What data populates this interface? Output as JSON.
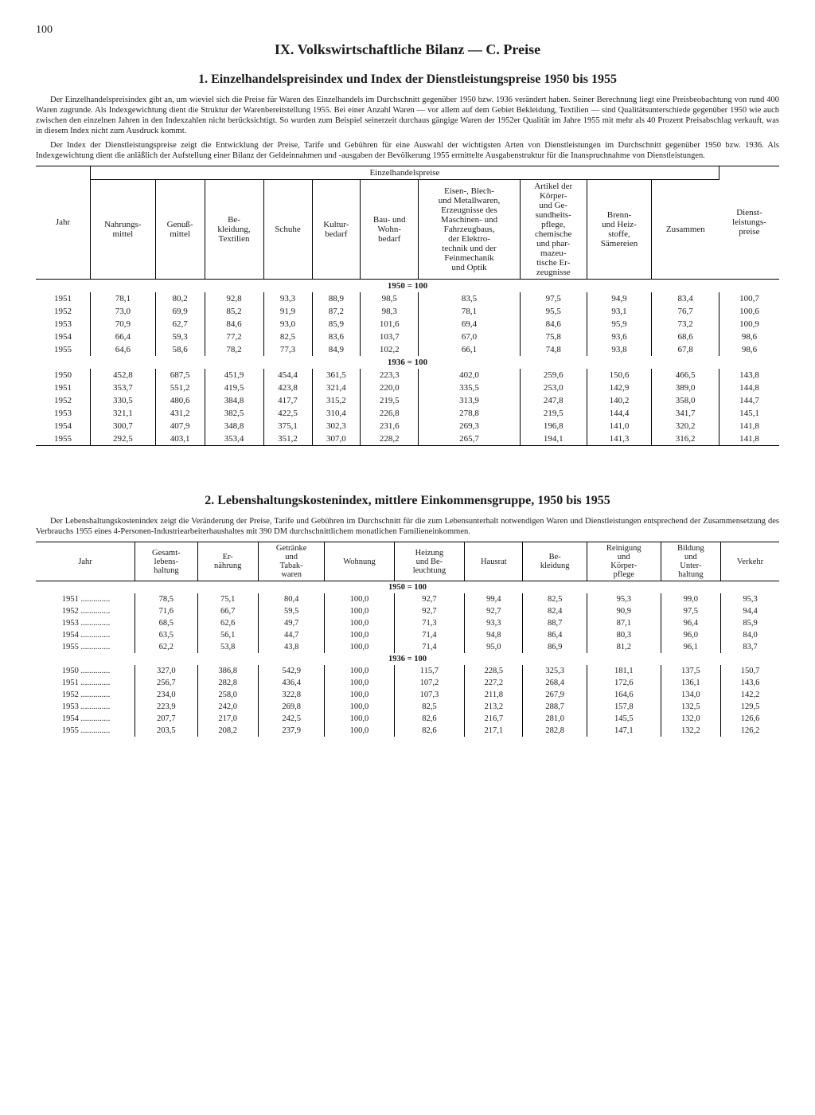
{
  "page_number": "100",
  "section_title": "IX. Volkswirtschaftliche Bilanz — C. Preise",
  "sub1_title": "1. Einzelhandelspreisindex und Index der Dienstleistungspreise 1950 bis 1955",
  "intro1a": "Der Einzelhandelspreisindex gibt an, um wieviel sich die Preise für Waren des Einzelhandels im Durchschnitt gegenüber 1950 bzw. 1936 verändert haben. Seiner Berechnung liegt eine Preisbeobachtung von rund 400 Waren zugrunde. Als Indexgewichtung dient die Struktur der Warenbereitstellung 1955. Bei einer Anzahl Waren — vor allem auf dem Gebiet Bekleidung, Textilien — sind Qualitätsunterschiede gegenüber 1950 wie auch zwischen den einzelnen Jahren in den Indexzahlen nicht berücksichtigt. So wurden zum Beispiel seinerzeit durchaus gängige Waren der 1952er Qualität im Jahre 1955 mit mehr als 40 Prozent Preisabschlag verkauft, was in diesem Index nicht zum Ausdruck kommt.",
  "intro1b": "Der Index der Dienstleistungspreise zeigt die Entwicklung der Preise, Tarife und Gebühren für eine Auswahl der wichtigsten Arten von Dienstleistungen im Durchschnitt gegenüber 1950 bzw. 1936. Als Indexgewichtung dient die anläßlich der Aufstellung einer Bilanz der Geldeinnahmen und -ausgaben der Bevölkerung 1955 ermittelte Ausgabenstruktur für die Inanspruchnahme von Dienstleistungen.",
  "t1": {
    "group_header": "Einzelhandelspreise",
    "cols": [
      "Jahr",
      "Nahrungs-\nmittel",
      "Genuß-\nmittel",
      "Be-\nkleidung,\nTextilien",
      "Schuhe",
      "Kultur-\nbedarf",
      "Bau- und\nWohn-\nbedarf",
      "Eisen-, Blech-\nund Metallwaren,\nErzeugnisse des\nMaschinen- und\nFahrzeugbaus,\nder Elektro-\ntechnik und der\nFeinmechanik\nund Optik",
      "Artikel der\nKörper-\nund Ge-\nsundheits-\npflege,\nchemische\nund phar-\nmazeu-\ntische Er-\nzeugnisse",
      "Brenn-\nund Heiz-\nstoffe,\nSämereien",
      "Zusammen",
      "Dienst-\nleistungs-\npreise"
    ],
    "sep1": "1950 = 100",
    "rows1": [
      [
        "1951",
        "78,1",
        "80,2",
        "92,8",
        "93,3",
        "88,9",
        "98,5",
        "83,5",
        "97,5",
        "94,9",
        "83,4",
        "100,7"
      ],
      [
        "1952",
        "73,0",
        "69,9",
        "85,2",
        "91,9",
        "87,2",
        "98,3",
        "78,1",
        "95,5",
        "93,1",
        "76,7",
        "100,6"
      ],
      [
        "1953",
        "70,9",
        "62,7",
        "84,6",
        "93,0",
        "85,9",
        "101,6",
        "69,4",
        "84,6",
        "95,9",
        "73,2",
        "100,9"
      ],
      [
        "1954",
        "66,4",
        "59,3",
        "77,2",
        "82,5",
        "83,6",
        "103,7",
        "67,0",
        "75,8",
        "93,6",
        "68,6",
        "98,6"
      ],
      [
        "1955",
        "64,6",
        "58,6",
        "78,2",
        "77,3",
        "84,9",
        "102,2",
        "66,1",
        "74,8",
        "93,8",
        "67,8",
        "98,6"
      ]
    ],
    "sep2": "1936 = 100",
    "rows2": [
      [
        "1950",
        "452,8",
        "687,5",
        "451,9",
        "454,4",
        "361,5",
        "223,3",
        "402,0",
        "259,6",
        "150,6",
        "466,5",
        "143,8"
      ],
      [
        "1951",
        "353,7",
        "551,2",
        "419,5",
        "423,8",
        "321,4",
        "220,0",
        "335,5",
        "253,0",
        "142,9",
        "389,0",
        "144,8"
      ],
      [
        "1952",
        "330,5",
        "480,6",
        "384,8",
        "417,7",
        "315,2",
        "219,5",
        "313,9",
        "247,8",
        "140,2",
        "358,0",
        "144,7"
      ],
      [
        "1953",
        "321,1",
        "431,2",
        "382,5",
        "422,5",
        "310,4",
        "226,8",
        "278,8",
        "219,5",
        "144,4",
        "341,7",
        "145,1"
      ],
      [
        "1954",
        "300,7",
        "407,9",
        "348,8",
        "375,1",
        "302,3",
        "231,6",
        "269,3",
        "196,8",
        "141,0",
        "320,2",
        "141,8"
      ],
      [
        "1955",
        "292,5",
        "403,1",
        "353,4",
        "351,2",
        "307,0",
        "228,2",
        "265,7",
        "194,1",
        "141,3",
        "316,2",
        "141,8"
      ]
    ]
  },
  "sub2_title": "2. Lebenshaltungskostenindex, mittlere Einkommensgruppe, 1950 bis 1955",
  "intro2": "Der Lebenshaltungskostenindex zeigt die Veränderung der Preise, Tarife und Gebühren im Durchschnitt für die zum Lebensunterhalt notwendigen Waren und Dienstleistungen entsprechend der Zusammensetzung des Verbrauchs 1955 eines 4-Personen-Industriearbeiterhaushaltes mit 390 DM durchschnittlichem monatlichen Familieneinkommen.",
  "t2": {
    "cols": [
      "Jahr",
      "Gesamt-\nlebens-\nhaltung",
      "Er-\nnährung",
      "Getränke\nund\nTabak-\nwaren",
      "Wohnung",
      "Heizung\nund Be-\nleuchtung",
      "Hausrat",
      "Be-\nkleidung",
      "Reinigung\nund\nKörper-\npflege",
      "Bildung\nund\nUnter-\nhaltung",
      "Verkehr"
    ],
    "sep1": "1950 = 100",
    "rows1": [
      [
        "1951",
        "78,5",
        "75,1",
        "80,4",
        "100,0",
        "92,7",
        "99,4",
        "82,5",
        "95,3",
        "99,0",
        "95,3"
      ],
      [
        "1952",
        "71,6",
        "66,7",
        "59,5",
        "100,0",
        "92,7",
        "92,7",
        "82,4",
        "90,9",
        "97,5",
        "94,4"
      ],
      [
        "1953",
        "68,5",
        "62,6",
        "49,7",
        "100,0",
        "71,3",
        "93,3",
        "88,7",
        "87,1",
        "96,4",
        "85,9"
      ],
      [
        "1954",
        "63,5",
        "56,1",
        "44,7",
        "100,0",
        "71,4",
        "94,8",
        "86,4",
        "80,3",
        "96,0",
        "84,0"
      ],
      [
        "1955",
        "62,2",
        "53,8",
        "43,8",
        "100,0",
        "71,4",
        "95,0",
        "86,9",
        "81,2",
        "96,1",
        "83,7"
      ]
    ],
    "sep2": "1936 = 100",
    "rows2": [
      [
        "1950",
        "327,0",
        "386,8",
        "542,9",
        "100,0",
        "115,7",
        "228,5",
        "325,3",
        "181,1",
        "137,5",
        "150,7"
      ],
      [
        "1951",
        "256,7",
        "282,8",
        "436,4",
        "100,0",
        "107,2",
        "227,2",
        "268,4",
        "172,6",
        "136,1",
        "143,6"
      ],
      [
        "1952",
        "234,0",
        "258,0",
        "322,8",
        "100,0",
        "107,3",
        "211,8",
        "267,9",
        "164,6",
        "134,0",
        "142,2"
      ],
      [
        "1953",
        "223,9",
        "242,0",
        "269,8",
        "100,0",
        "82,5",
        "213,2",
        "288,7",
        "157,8",
        "132,5",
        "129,5"
      ],
      [
        "1954",
        "207,7",
        "217,0",
        "242,5",
        "100,0",
        "82,6",
        "216,7",
        "281,0",
        "145,5",
        "132,0",
        "126,6"
      ],
      [
        "1955",
        "203,5",
        "208,2",
        "237,9",
        "100,0",
        "82,6",
        "217,1",
        "282,8",
        "147,1",
        "132,2",
        "126,2"
      ]
    ]
  }
}
